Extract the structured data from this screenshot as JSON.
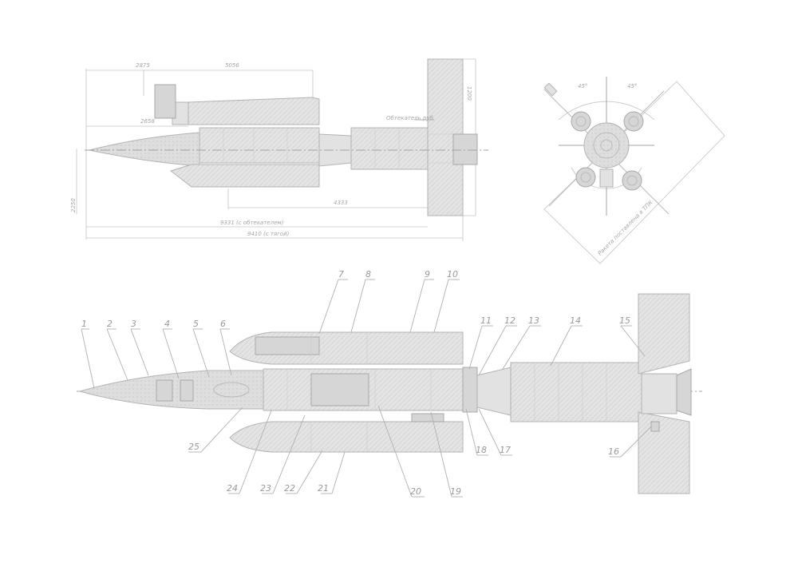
{
  "drawing": {
    "dimension_labels": {
      "length_body": "9331 (с обтекателем)",
      "length_total": "9410 (с тягой)",
      "pointer_cover": "Обтекатель руб."
    },
    "rear_view_labels": {
      "angle_left": "45°",
      "angle_right": "45°",
      "note": "Ракета поставлена в ТПК"
    },
    "callouts": [
      "1",
      "2",
      "3",
      "4",
      "5",
      "6",
      "7",
      "8",
      "9",
      "10",
      "11",
      "12",
      "13",
      "14",
      "15",
      "16",
      "17",
      "18",
      "19",
      "20",
      "21",
      "22",
      "23",
      "24",
      "25"
    ]
  }
}
